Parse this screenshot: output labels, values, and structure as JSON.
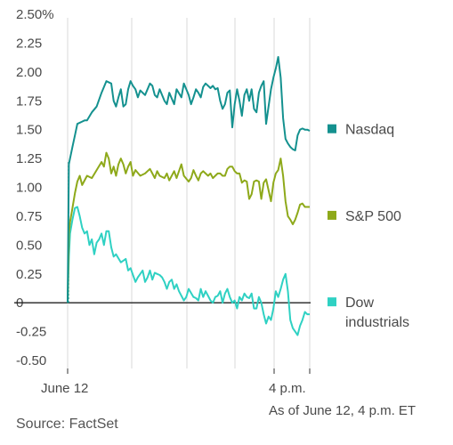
{
  "chart_data": {
    "type": "line",
    "x_ticks": [
      "June 12",
      "4 p.m."
    ],
    "y_ticks": [
      "2.50%",
      "2.25",
      "2.00",
      "1.75",
      "1.50",
      "1.25",
      "1.00",
      "0.75",
      "0.50",
      "0.25",
      "0",
      "-0.25",
      "-0.50"
    ],
    "ylim": [
      -0.5,
      2.5
    ],
    "grid": "vertical",
    "zero_line": true,
    "legend_position": "right",
    "note": "As of June 12, 4 p.m. ET",
    "series": [
      {
        "name": "Nasdaq",
        "color": "#14918f",
        "x": [
          0,
          0.5,
          1,
          2,
          3,
          4,
          6,
          7,
          8,
          10,
          12,
          14,
          16,
          18,
          19,
          20,
          21,
          22,
          23,
          24,
          25,
          26,
          27,
          28,
          29,
          30,
          32,
          34,
          35,
          36,
          37,
          38,
          40,
          41,
          42,
          44,
          45,
          47,
          48,
          50,
          51,
          52,
          53,
          54,
          55,
          56,
          57,
          58,
          59,
          60,
          61,
          62,
          63,
          64,
          65,
          66,
          67,
          68,
          69,
          70,
          71,
          72,
          73,
          74,
          75,
          76,
          77,
          78,
          79,
          80,
          81,
          82,
          84,
          85,
          86,
          87,
          88,
          89,
          90,
          91,
          92,
          93,
          94,
          95,
          96,
          97,
          98,
          99,
          100
        ],
        "y": [
          0,
          1.2,
          1.25,
          1.35,
          1.45,
          1.55,
          1.57,
          1.58,
          1.58,
          1.65,
          1.7,
          1.82,
          1.92,
          1.9,
          1.75,
          1.7,
          1.78,
          1.85,
          1.7,
          1.72,
          1.85,
          1.92,
          1.88,
          1.85,
          1.78,
          1.84,
          1.8,
          1.9,
          1.88,
          1.8,
          1.78,
          1.85,
          1.75,
          1.72,
          1.82,
          1.72,
          1.85,
          1.78,
          1.9,
          1.8,
          1.72,
          1.78,
          1.85,
          1.82,
          1.78,
          1.87,
          1.9,
          1.88,
          1.86,
          1.88,
          1.85,
          1.86,
          1.75,
          1.68,
          1.72,
          1.82,
          1.84,
          1.52,
          1.72,
          1.85,
          1.75,
          1.62,
          1.8,
          1.85,
          1.75,
          1.85,
          1.68,
          1.65,
          1.82,
          1.88,
          1.92,
          1.55,
          1.85,
          1.95,
          2.03,
          2.13,
          1.95,
          1.6,
          1.42,
          1.38,
          1.35,
          1.33,
          1.32,
          1.45,
          1.5,
          1.51,
          1.5,
          1.5,
          1.49
        ]
      },
      {
        "name": "S&P 500",
        "color": "#8ea91a",
        "x": [
          0,
          0.5,
          1,
          2,
          3,
          4,
          5,
          6,
          8,
          10,
          12,
          14,
          15,
          16,
          17,
          18,
          19,
          20,
          21,
          22,
          23,
          24,
          25,
          26,
          27,
          28,
          30,
          32,
          34,
          35,
          36,
          37,
          38,
          40,
          41,
          42,
          44,
          45,
          47,
          48,
          50,
          51,
          52,
          53,
          54,
          55,
          56,
          57,
          58,
          59,
          60,
          61,
          62,
          63,
          64,
          65,
          66,
          67,
          68,
          69,
          70,
          71,
          72,
          73,
          74,
          75,
          76,
          77,
          78,
          79,
          80,
          81,
          82,
          84,
          85,
          86,
          87,
          88,
          89,
          90,
          91,
          92,
          93,
          94,
          95,
          96,
          97,
          98,
          99,
          100
        ],
        "y": [
          0,
          0.6,
          0.7,
          0.82,
          0.95,
          1.05,
          1.1,
          1.02,
          1.1,
          1.08,
          1.15,
          1.22,
          1.18,
          1.3,
          1.25,
          1.12,
          1.18,
          1.1,
          1.2,
          1.25,
          1.2,
          1.12,
          1.18,
          1.22,
          1.1,
          1.15,
          1.1,
          1.12,
          1.16,
          1.12,
          1.08,
          1.14,
          1.1,
          1.08,
          1.12,
          1.06,
          1.14,
          1.08,
          1.2,
          1.1,
          1.05,
          1.08,
          1.15,
          1.1,
          1.06,
          1.12,
          1.14,
          1.12,
          1.1,
          1.12,
          1.08,
          1.1,
          1.12,
          1.12,
          1.1,
          1.1,
          1.16,
          1.18,
          1.18,
          1.14,
          1.12,
          1.12,
          1.04,
          1.06,
          1.05,
          0.9,
          0.94,
          1.05,
          1.06,
          1.05,
          0.9,
          1.04,
          1.07,
          0.88,
          1.04,
          1.12,
          1.15,
          1.25,
          1.1,
          0.88,
          0.75,
          0.72,
          0.68,
          0.72,
          0.78,
          0.85,
          0.86,
          0.83,
          0.83,
          0.83
        ]
      },
      {
        "name": "Dow industrials",
        "color": "#2fd1c3",
        "x": [
          0,
          0.5,
          1,
          2,
          3,
          4,
          5,
          6,
          7,
          8,
          9,
          10,
          11,
          12,
          13,
          14,
          15,
          16,
          17,
          18,
          19,
          20,
          22,
          24,
          25,
          26,
          28,
          29,
          30,
          31,
          32,
          33,
          34,
          35,
          36,
          37,
          38,
          39,
          40,
          41,
          42,
          43,
          44,
          45,
          46,
          48,
          49,
          50,
          52,
          53,
          54,
          55,
          56,
          57,
          58,
          59,
          60,
          61,
          62,
          63,
          64,
          65,
          66,
          67,
          68,
          69,
          70,
          71,
          72,
          73,
          74,
          75,
          76,
          77,
          78,
          79,
          80,
          81,
          82,
          83,
          84,
          85,
          86,
          87,
          88,
          89,
          90,
          91,
          92,
          93,
          94,
          95,
          96,
          97,
          98,
          99,
          100
        ],
        "y": [
          0,
          0.4,
          0.6,
          0.72,
          0.82,
          0.83,
          0.75,
          0.65,
          0.6,
          0.62,
          0.5,
          0.55,
          0.42,
          0.52,
          0.55,
          0.6,
          0.5,
          0.62,
          0.62,
          0.48,
          0.4,
          0.42,
          0.35,
          0.38,
          0.28,
          0.3,
          0.18,
          0.22,
          0.25,
          0.28,
          0.18,
          0.22,
          0.28,
          0.2,
          0.26,
          0.25,
          0.24,
          0.22,
          0.18,
          0.12,
          0.18,
          0.2,
          0.12,
          0.16,
          0.1,
          0.02,
          0.05,
          0.12,
          0.05,
          0.04,
          0.02,
          0.12,
          0.05,
          0.1,
          0.06,
          0.02,
          0.0,
          0.05,
          0.06,
          0.1,
          0.0,
          0.08,
          0.12,
          0.05,
          0.0,
          0.02,
          -0.05,
          0.05,
          0.02,
          0.08,
          0.05,
          0.04,
          0.08,
          -0.05,
          -0.05,
          0.05,
          0.0,
          -0.1,
          -0.18,
          -0.12,
          -0.15,
          -0.05,
          0.1,
          0.05,
          0.12,
          0.2,
          0.25,
          0.1,
          -0.15,
          -0.22,
          -0.25,
          -0.28,
          -0.2,
          -0.15,
          -0.08,
          -0.1,
          -0.1
        ]
      }
    ]
  },
  "source": "Source: FactSet"
}
